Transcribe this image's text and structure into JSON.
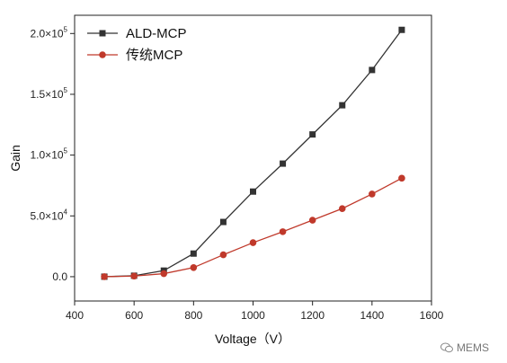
{
  "chart_data": {
    "type": "line",
    "xlabel": "Voltage（V）",
    "ylabel": "Gain",
    "xlim": [
      400,
      1600
    ],
    "ylim": [
      -20000,
      215000
    ],
    "x_ticks": [
      400,
      600,
      800,
      1000,
      1200,
      1400,
      1600
    ],
    "y_ticks": [
      {
        "value": 0,
        "mantissa": "0.0",
        "exponent": ""
      },
      {
        "value": 50000,
        "mantissa": "5.0×10",
        "exponent": "4"
      },
      {
        "value": 100000,
        "mantissa": "1.0×10",
        "exponent": "5"
      },
      {
        "value": 150000,
        "mantissa": "1.5×10",
        "exponent": "5"
      },
      {
        "value": 200000,
        "mantissa": "2.0×10",
        "exponent": "5"
      }
    ],
    "legend_position": "top-left",
    "grid": false,
    "x": [
      500,
      600,
      700,
      800,
      900,
      1000,
      1100,
      1200,
      1300,
      1400,
      1500
    ],
    "series": [
      {
        "name": "ALD-MCP",
        "color": "#333333",
        "marker": "square",
        "values": [
          0,
          800,
          5000,
          19000,
          45000,
          70000,
          93000,
          117000,
          141000,
          170000,
          203000
        ]
      },
      {
        "name": "传统MCP",
        "color": "#c0392b",
        "marker": "circle",
        "values": [
          0,
          500,
          2500,
          7500,
          18000,
          28000,
          37000,
          46500,
          56000,
          68000,
          81000
        ]
      }
    ]
  },
  "watermark": {
    "text": "MEMS",
    "icon": "wechat-icon"
  }
}
